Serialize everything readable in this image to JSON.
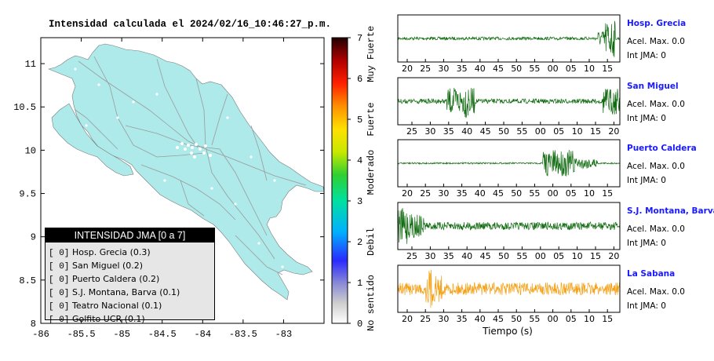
{
  "page_title": "Intensidad calculada el 2024/02/16_10:46:27_p.m.",
  "colors": {
    "land": "#aeeaea",
    "wave_green": "#106b10",
    "wave_orange": "#f4a21a",
    "station_label": "#1a1aff"
  },
  "map": {
    "x_ticks": [
      "-86",
      "-85.5",
      "-85",
      "-84.5",
      "-84",
      "-83.5",
      "-83"
    ],
    "y_ticks": [
      "11",
      "10.5",
      "10",
      "9.5",
      "9",
      "8.5",
      "8"
    ],
    "x_range": [
      -86,
      -82.5
    ],
    "y_range": [
      8,
      11.3
    ]
  },
  "colorbar": {
    "ticks": [
      "0",
      "1",
      "2",
      "3",
      "4",
      "5",
      "6",
      "7"
    ],
    "range": [
      0,
      7
    ],
    "labels": [
      "No sentido",
      "Debil",
      "Moderado",
      "Fuerte",
      "Muy Fuerte"
    ]
  },
  "legend": {
    "title": "INTENSIDAD JMA [0 a 7]",
    "items": [
      {
        "bracket": "[ 0]",
        "text": "Hosp. Grecia (0.3)"
      },
      {
        "bracket": "[ 0]",
        "text": "San Miguel (0.2)"
      },
      {
        "bracket": "[ 0]",
        "text": "Puerto Caldera (0.2)"
      },
      {
        "bracket": "[ 0]",
        "text": "S.J. Montana, Barva (0.1)"
      },
      {
        "bracket": "[ 0]",
        "text": "Teatro Nacional (0.1)"
      },
      {
        "bracket": "[ 0]",
        "text": "Golfito UCR (0.1)"
      }
    ]
  },
  "chart_data": {
    "type": "line",
    "xlabel": "Tiempo (s)",
    "series": [
      {
        "name": "Hosp. Grecia",
        "acel": "Acel. Max. 0.0",
        "int": "Int JMA: 0",
        "color": "#106b10",
        "ticks": [
          "20",
          "25",
          "30",
          "35",
          "40",
          "45",
          "50",
          "55",
          "00",
          "05",
          "10",
          "15"
        ]
      },
      {
        "name": "San Miguel",
        "acel": "Acel. Max. 0.0",
        "int": "Int JMA: 0",
        "color": "#106b10",
        "ticks": [
          "25",
          "30",
          "35",
          "40",
          "45",
          "50",
          "55",
          "00",
          "05",
          "10",
          "15",
          "20"
        ]
      },
      {
        "name": "Puerto Caldera",
        "acel": "Acel. Max. 0.0",
        "int": "Int JMA: 0",
        "color": "#106b10",
        "ticks": [
          "20",
          "25",
          "30",
          "35",
          "40",
          "45",
          "50",
          "55",
          "00",
          "05",
          "10",
          "15"
        ]
      },
      {
        "name": "S.J. Montana, Barva",
        "acel": "Acel. Max. 0.0",
        "int": "Int JMA: 0",
        "color": "#106b10",
        "ticks": [
          "25",
          "30",
          "35",
          "40",
          "45",
          "50",
          "55",
          "00",
          "05",
          "10",
          "15",
          "20"
        ]
      },
      {
        "name": "La Sabana",
        "acel": "Acel. Max. 0.0",
        "int": "Int JMA: 0",
        "color": "#f4a21a",
        "ticks": [
          "20",
          "25",
          "30",
          "35",
          "40",
          "45",
          "50",
          "55",
          "00",
          "05",
          "10",
          "15"
        ]
      }
    ]
  }
}
